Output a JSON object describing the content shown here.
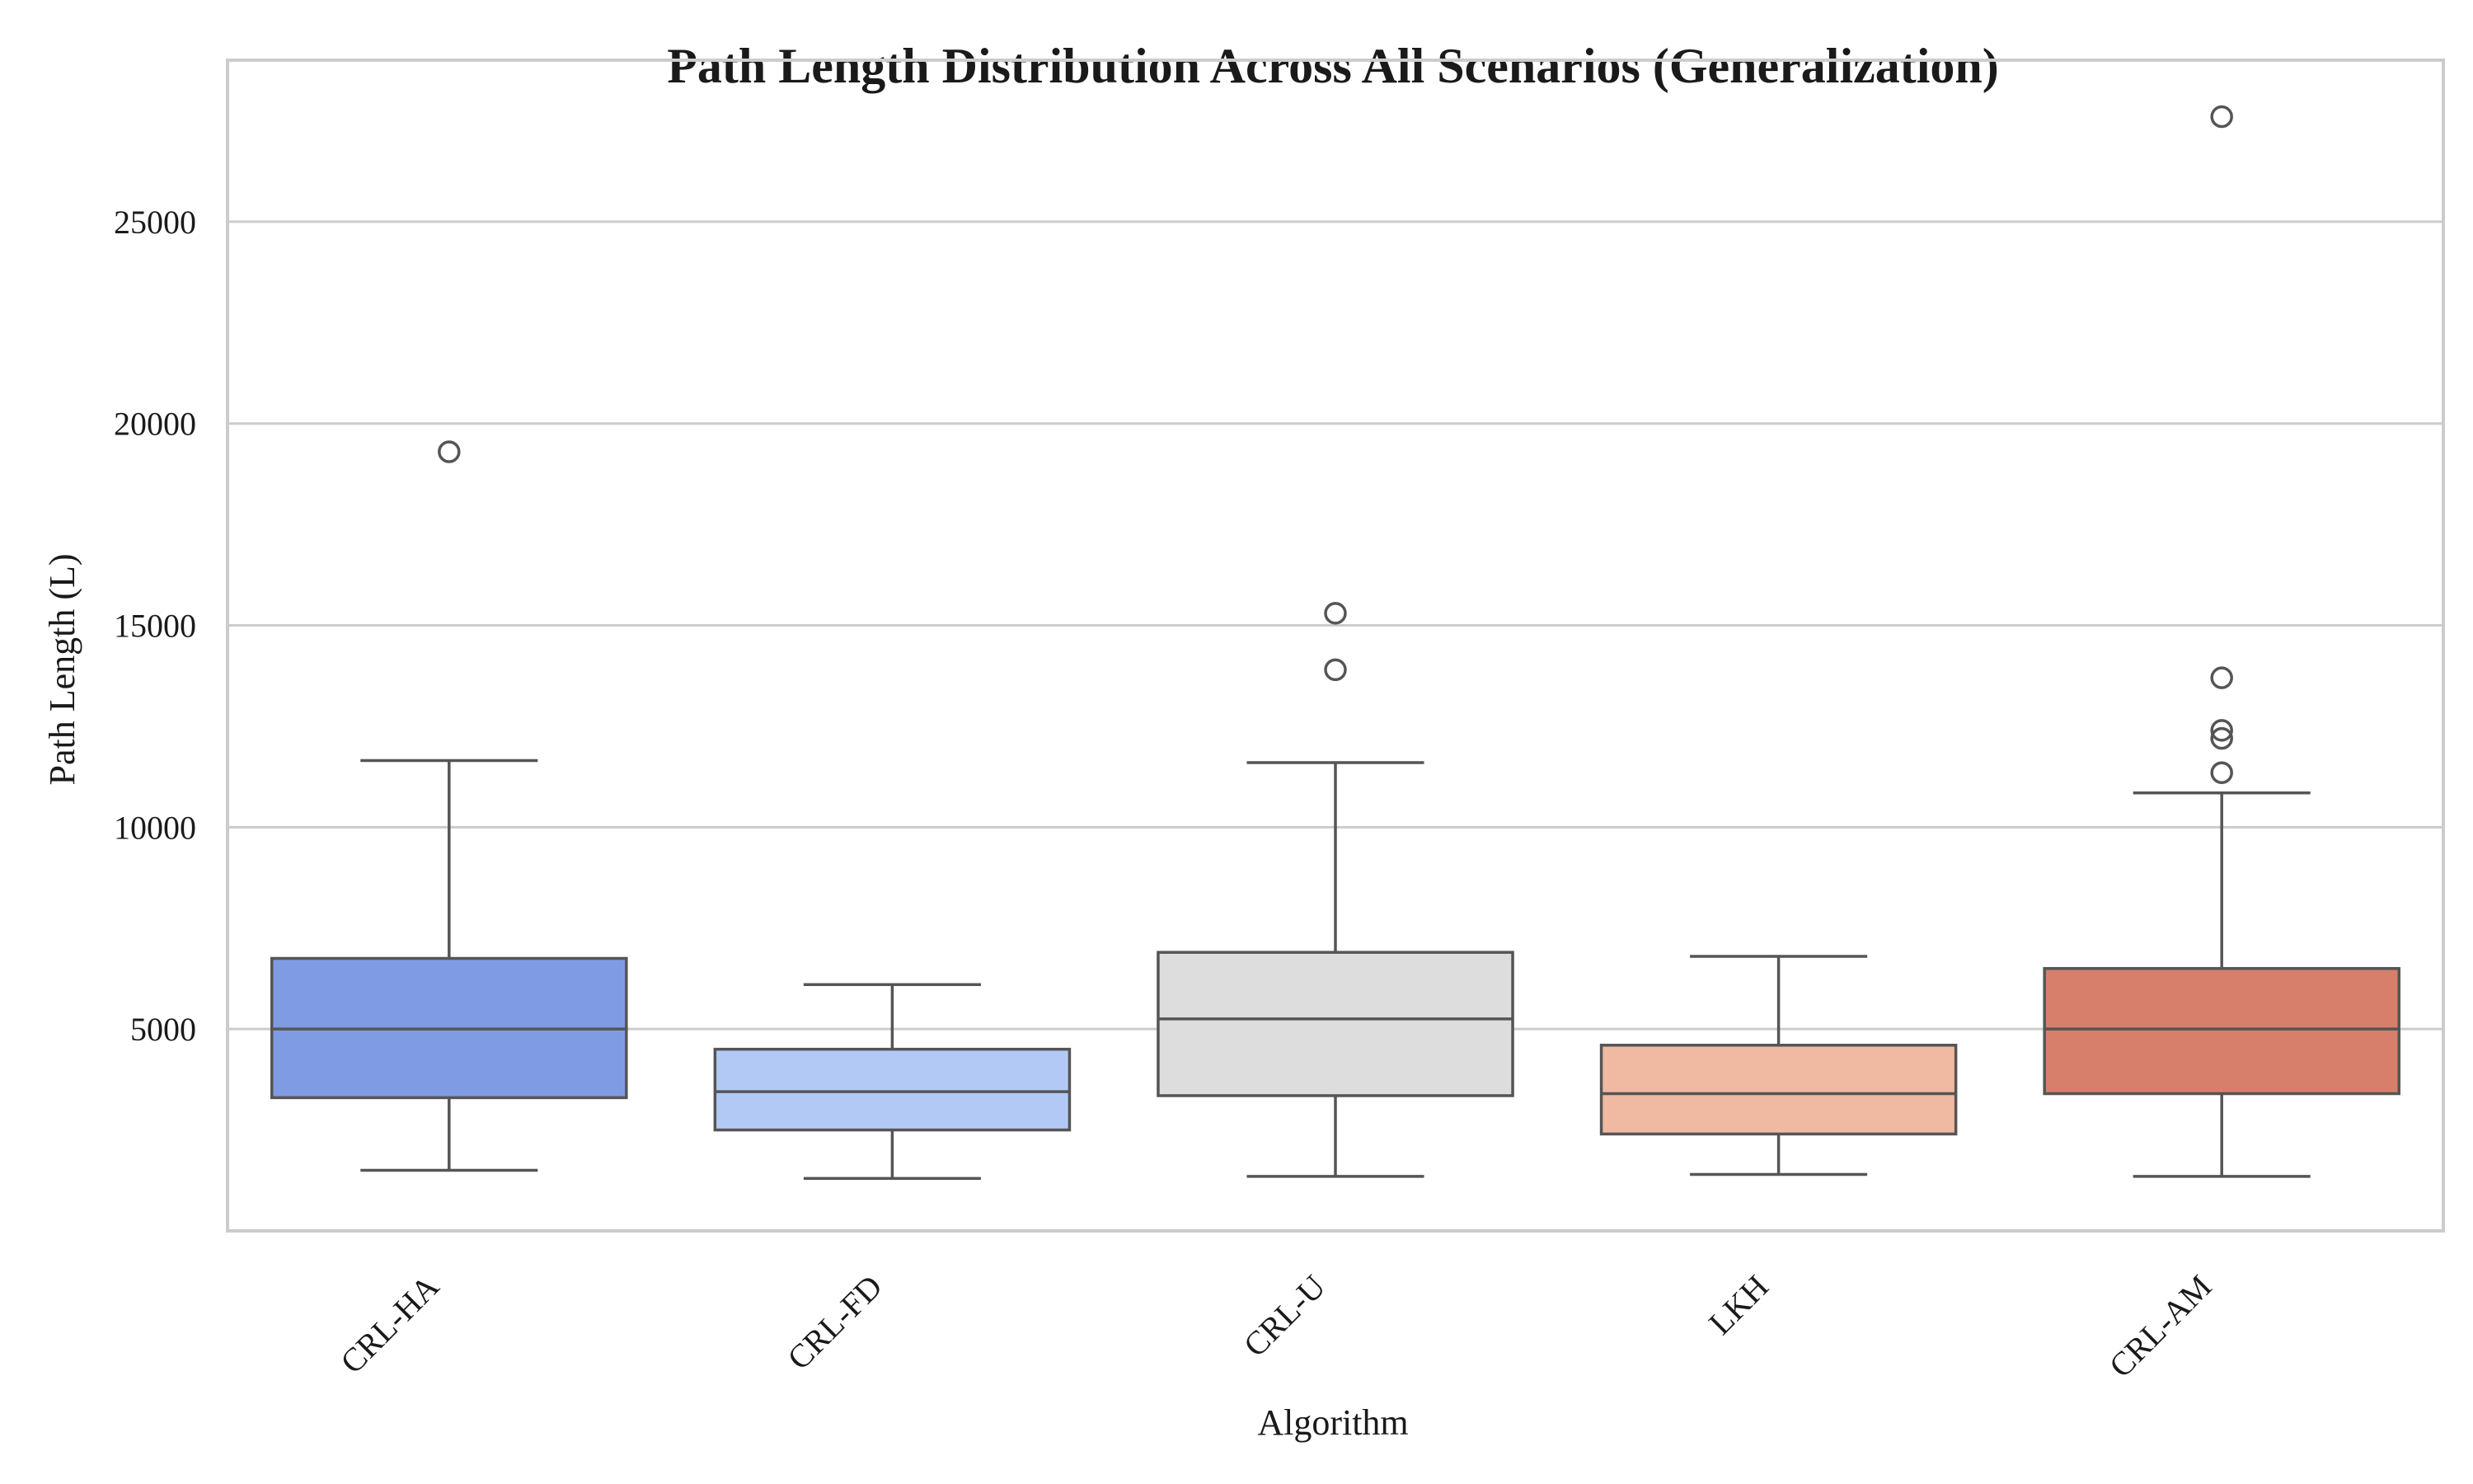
{
  "chart_data": {
    "type": "box",
    "title": "Path Length Distribution Across All Scenarios (Generalization)",
    "xlabel": "Algorithm",
    "ylabel": "Path Length (L)",
    "ylim": [
      0,
      29000
    ],
    "yticks": [
      5000,
      10000,
      15000,
      20000,
      25000
    ],
    "grid": "horizontal",
    "series": [
      {
        "category": "CRL-HA",
        "color": "#7f9ce3",
        "whisker_low": 1500,
        "q1": 3300,
        "median": 5000,
        "q3": 6750,
        "whisker_high": 11650,
        "outliers": [
          19300
        ]
      },
      {
        "category": "CRL-FD",
        "color": "#b3c9f5",
        "whisker_low": 1300,
        "q1": 2500,
        "median": 3450,
        "q3": 4500,
        "whisker_high": 6100,
        "outliers": []
      },
      {
        "category": "CRL-U",
        "color": "#dddddd",
        "whisker_low": 1350,
        "q1": 3350,
        "median": 5250,
        "q3": 6900,
        "whisker_high": 11600,
        "outliers": [
          15300,
          13900
        ]
      },
      {
        "category": "LKH",
        "color": "#efb9a2",
        "whisker_low": 1400,
        "q1": 2400,
        "median": 3400,
        "q3": 4600,
        "whisker_high": 6800,
        "outliers": []
      },
      {
        "category": "CRL-AM",
        "color": "#d87f6b",
        "whisker_low": 1350,
        "q1": 3400,
        "median": 5000,
        "q3": 6500,
        "whisker_high": 10850,
        "outliers": [
          27600,
          13700,
          12400,
          12200,
          11350
        ]
      }
    ]
  }
}
